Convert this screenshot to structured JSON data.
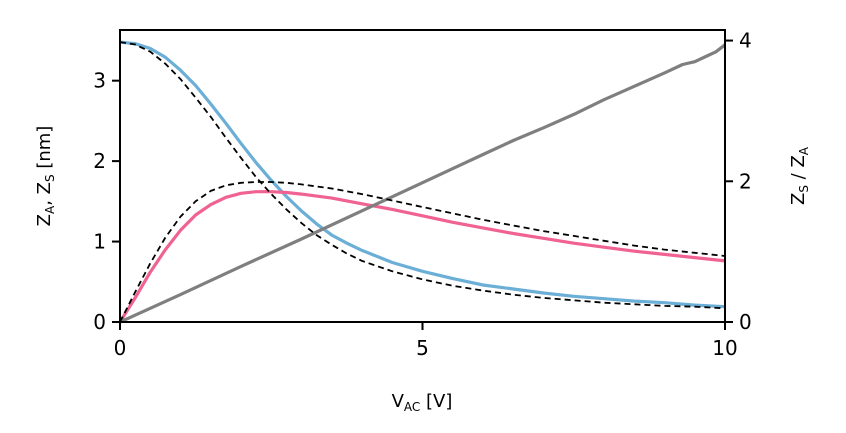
{
  "chart_data": {
    "type": "line",
    "title": "",
    "xlabel": {
      "main": "V",
      "sub": "AC",
      "suffix": " [V]"
    },
    "ylabel_left": {
      "p1": "Z",
      "s1": "A",
      "mid": ", Z",
      "s2": "S",
      "suffix": " [nm]"
    },
    "ylabel_right": {
      "p1": "Z",
      "s1": "S",
      "mid": " / Z",
      "s2": "A"
    },
    "xlim": [
      0,
      10
    ],
    "ylim_left": [
      0,
      3.63
    ],
    "ylim_right": [
      0,
      4.15
    ],
    "x_ticks": [
      0,
      5,
      10
    ],
    "y_left_ticks": [
      0,
      1,
      2,
      3
    ],
    "y_right_ticks": [
      0,
      2,
      4
    ],
    "grid": false,
    "legend": "none",
    "colors": {
      "ZA": "#6baed6",
      "ZS": "#f06292",
      "ratio": "#7f7f7f",
      "model": "#000000"
    },
    "series": [
      {
        "key": "ZA",
        "axis": "left",
        "style": "solid",
        "x": [
          0,
          0.25,
          0.5,
          0.75,
          1.0,
          1.25,
          1.5,
          1.75,
          2.0,
          2.25,
          2.5,
          2.75,
          3.0,
          3.25,
          3.5,
          3.75,
          4.0,
          4.5,
          5.0,
          5.5,
          6.0,
          6.5,
          7.0,
          7.5,
          8.0,
          8.5,
          9.0,
          9.5,
          10.0
        ],
        "y": [
          3.48,
          3.46,
          3.4,
          3.29,
          3.13,
          2.94,
          2.71,
          2.47,
          2.22,
          1.98,
          1.76,
          1.56,
          1.38,
          1.22,
          1.08,
          0.98,
          0.89,
          0.74,
          0.63,
          0.54,
          0.46,
          0.41,
          0.36,
          0.32,
          0.29,
          0.26,
          0.24,
          0.21,
          0.19
        ]
      },
      {
        "key": "ZS",
        "axis": "left",
        "style": "solid",
        "x": [
          0,
          0.25,
          0.5,
          0.75,
          1.0,
          1.25,
          1.5,
          1.75,
          2.0,
          2.25,
          2.5,
          2.75,
          3.0,
          3.5,
          4.0,
          4.5,
          5.0,
          5.5,
          6.0,
          6.5,
          7.0,
          7.5,
          8.0,
          8.5,
          9.0,
          9.5,
          10.0
        ],
        "y": [
          0.0,
          0.3,
          0.62,
          0.9,
          1.14,
          1.33,
          1.46,
          1.55,
          1.6,
          1.62,
          1.62,
          1.61,
          1.59,
          1.54,
          1.47,
          1.4,
          1.32,
          1.24,
          1.17,
          1.1,
          1.04,
          0.98,
          0.93,
          0.88,
          0.84,
          0.8,
          0.76
        ]
      },
      {
        "key": "ratio",
        "axis": "right",
        "style": "solid",
        "x": [
          0,
          1,
          2,
          3,
          4,
          5,
          5.5,
          6,
          6.5,
          7,
          7.5,
          8,
          8.5,
          9,
          9.3,
          9.5,
          9.7,
          9.85,
          10.0
        ],
        "y": [
          0.0,
          0.39,
          0.79,
          1.18,
          1.58,
          1.98,
          2.18,
          2.38,
          2.58,
          2.76,
          2.95,
          3.16,
          3.35,
          3.54,
          3.66,
          3.7,
          3.78,
          3.84,
          3.94
        ]
      },
      {
        "key": "ZA_model",
        "axis": "left",
        "style": "dashed",
        "x": [
          0,
          0.25,
          0.5,
          0.75,
          1.0,
          1.25,
          1.5,
          1.75,
          2.0,
          2.25,
          2.5,
          2.75,
          3.0,
          3.25,
          3.5,
          3.75,
          4.0,
          4.5,
          5.0,
          5.5,
          6.0,
          6.5,
          7.0,
          7.5,
          8.0,
          8.5,
          9.0,
          9.5,
          10.0
        ],
        "y": [
          3.48,
          3.45,
          3.36,
          3.21,
          3.02,
          2.79,
          2.55,
          2.29,
          2.04,
          1.8,
          1.59,
          1.4,
          1.23,
          1.08,
          0.96,
          0.85,
          0.76,
          0.63,
          0.53,
          0.45,
          0.39,
          0.34,
          0.3,
          0.27,
          0.24,
          0.22,
          0.2,
          0.19,
          0.17
        ]
      },
      {
        "key": "ZS_model",
        "axis": "left",
        "style": "dashed",
        "x": [
          0,
          0.25,
          0.5,
          0.75,
          1.0,
          1.25,
          1.5,
          1.75,
          2.0,
          2.25,
          2.5,
          2.75,
          3.0,
          3.5,
          4.0,
          4.5,
          5.0,
          5.5,
          6.0,
          6.5,
          7.0,
          7.5,
          8.0,
          8.5,
          9.0,
          9.5,
          10.0
        ],
        "y": [
          0.0,
          0.37,
          0.73,
          1.05,
          1.31,
          1.5,
          1.63,
          1.7,
          1.73,
          1.74,
          1.74,
          1.73,
          1.71,
          1.66,
          1.59,
          1.51,
          1.43,
          1.35,
          1.27,
          1.2,
          1.13,
          1.07,
          1.01,
          0.95,
          0.9,
          0.86,
          0.82
        ]
      }
    ]
  }
}
